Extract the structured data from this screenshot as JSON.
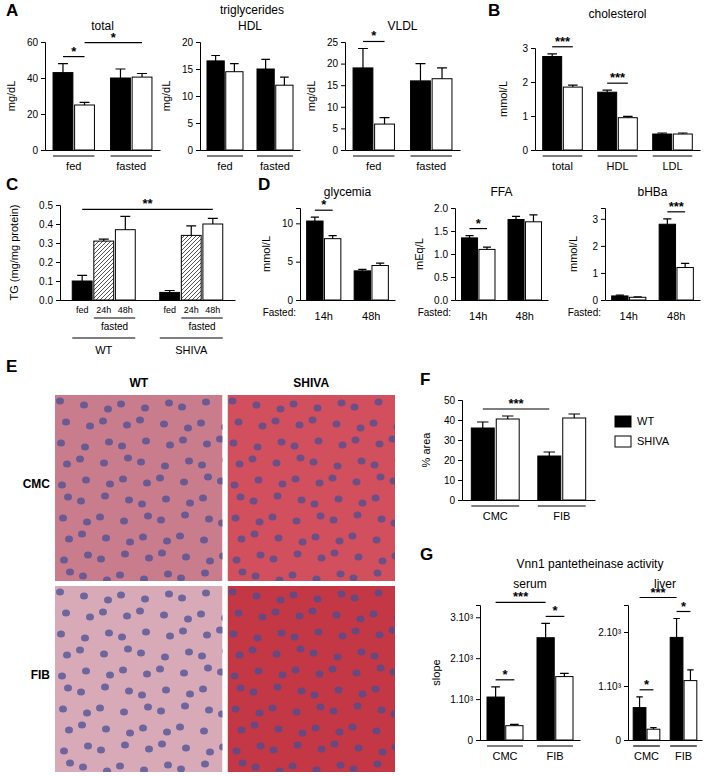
{
  "chart_data": [
    {
      "panel": "A",
      "type": "bar",
      "title": "total",
      "ylabel": "mg/dL",
      "categories": [
        "fed",
        "fasted"
      ],
      "series": [
        {
          "color": "#000000",
          "values": [
            43,
            40
          ],
          "errors": [
            5,
            5
          ]
        },
        {
          "color": "#ffffff",
          "values": [
            25,
            40.5
          ],
          "errors": [
            1.5,
            2
          ]
        }
      ],
      "ylim": [
        0,
        60
      ],
      "yticks": [
        0,
        20,
        40,
        60
      ],
      "annotations": [
        {
          "text": "*",
          "from": [
            0,
            0
          ],
          "to": [
            0,
            1
          ]
        },
        {
          "text": "*",
          "from": [
            0,
            1
          ],
          "to": [
            1,
            1
          ]
        }
      ]
    },
    {
      "type": "bar",
      "subtitle": "triglycerides",
      "title": "HDL",
      "ylabel": "mg/dL",
      "categories": [
        "fed",
        "fasted"
      ],
      "series": [
        {
          "color": "#000000",
          "values": [
            16.5,
            15
          ],
          "errors": [
            1,
            1.8
          ]
        },
        {
          "color": "#ffffff",
          "values": [
            14.5,
            12
          ],
          "errors": [
            1.5,
            1.5
          ]
        }
      ],
      "ylim": [
        0,
        20
      ],
      "yticks": [
        0,
        5,
        10,
        15,
        20
      ]
    },
    {
      "type": "bar",
      "title": "VLDL",
      "ylabel": "mg/dL",
      "categories": [
        "fed",
        "fasted"
      ],
      "series": [
        {
          "color": "#000000",
          "values": [
            19,
            16
          ],
          "errors": [
            4.5,
            4
          ]
        },
        {
          "color": "#ffffff",
          "values": [
            6,
            16.5
          ],
          "errors": [
            1.5,
            2.5
          ]
        }
      ],
      "ylim": [
        0,
        25
      ],
      "yticks": [
        0,
        5,
        10,
        15,
        20,
        25
      ],
      "annotations": [
        {
          "text": "*",
          "from": [
            0,
            0
          ],
          "to": [
            0,
            1
          ]
        }
      ]
    },
    {
      "panel": "B",
      "type": "bar",
      "title": "cholesterol",
      "ylabel": "mmol/L",
      "categories": [
        "total",
        "HDL",
        "LDL"
      ],
      "series": [
        {
          "color": "#000000",
          "values": [
            2.75,
            1.7,
            0.47
          ],
          "errors": [
            0.08,
            0.06,
            0.03
          ]
        },
        {
          "color": "#ffffff",
          "values": [
            1.85,
            0.95,
            0.47
          ],
          "errors": [
            0.06,
            0.04,
            0.03
          ]
        }
      ],
      "ylim": [
        0,
        3
      ],
      "yticks": [
        0,
        1,
        2,
        3
      ],
      "annotations": [
        {
          "text": "***",
          "from": [
            0,
            0
          ],
          "to": [
            0,
            1
          ]
        },
        {
          "text": "***",
          "from": [
            1,
            0
          ],
          "to": [
            1,
            1
          ]
        }
      ]
    },
    {
      "panel": "C",
      "type": "bar",
      "ylabel": "TG (mg/mg protein)",
      "categories": [
        "WT",
        "SHIVA"
      ],
      "sublabel": {
        "text": "fasted",
        "series": [
          1,
          2
        ]
      },
      "series": [
        {
          "name": "fed",
          "color": "#000000",
          "values": [
            0.1,
            0.04
          ],
          "errors": [
            0.03,
            0.01
          ]
        },
        {
          "name": "24h",
          "color": "#ffffff",
          "marker": "hatch",
          "values": [
            0.31,
            0.34
          ],
          "errors": [
            0.01,
            0.05
          ]
        },
        {
          "name": "48h",
          "color": "#ffffff",
          "values": [
            0.37,
            0.4
          ],
          "errors": [
            0.07,
            0.03
          ]
        }
      ],
      "ylim": [
        0,
        0.5
      ],
      "yticks": [
        {
          "value": 0,
          "label": "0.0"
        },
        {
          "value": 0.1,
          "label": "0.1"
        },
        {
          "value": 0.2,
          "label": "0.2"
        },
        {
          "value": 0.3,
          "label": "0.3"
        },
        {
          "value": 0.4,
          "label": "0.4"
        },
        {
          "value": 0.5,
          "label": "0.5"
        }
      ],
      "annotations": [
        {
          "text": "**",
          "from": [
            0,
            0
          ],
          "to": [
            1,
            2
          ]
        }
      ]
    },
    {
      "panel": "D",
      "type": "bar",
      "title": "glycemia",
      "ylabel": "mmol/L",
      "xlabel": "Fasted:",
      "categories": [
        "14h",
        "48h"
      ],
      "series": [
        {
          "color": "#000000",
          "values": [
            10.3,
            3.8
          ],
          "errors": [
            0.5,
            0.2
          ]
        },
        {
          "color": "#ffffff",
          "values": [
            8,
            4.5
          ],
          "errors": [
            0.4,
            0.3
          ]
        }
      ],
      "ylim": [
        0,
        12
      ],
      "yticks": [
        0,
        5,
        10
      ],
      "annotations": [
        {
          "text": "*",
          "from": [
            0,
            0
          ],
          "to": [
            0,
            1
          ]
        }
      ]
    },
    {
      "type": "bar",
      "title": "FFA",
      "ylabel": "mEq/L",
      "xlabel": "Fasted:",
      "categories": [
        "14h",
        "48h"
      ],
      "series": [
        {
          "color": "#000000",
          "values": [
            1.35,
            1.75
          ],
          "errors": [
            0.05,
            0.07
          ]
        },
        {
          "color": "#ffffff",
          "values": [
            1.1,
            1.7
          ],
          "errors": [
            0.05,
            0.15
          ]
        }
      ],
      "ylim": [
        0,
        2
      ],
      "yticks": [
        {
          "value": 0,
          "label": "0.0"
        },
        {
          "value": 0.5,
          "label": "0.5"
        },
        {
          "value": 1,
          "label": "1.0"
        },
        {
          "value": 1.5,
          "label": "1.5"
        },
        {
          "value": 2,
          "label": "2.0"
        }
      ],
      "annotations": [
        {
          "text": "*",
          "from": [
            0,
            0
          ],
          "to": [
            0,
            1
          ]
        }
      ]
    },
    {
      "type": "bar",
      "title": "bHBa",
      "ylabel": "mmol/L",
      "xlabel": "Fasted:",
      "categories": [
        "14h",
        "48h"
      ],
      "series": [
        {
          "color": "#000000",
          "values": [
            0.15,
            2.8
          ],
          "errors": [
            0.03,
            0.2
          ]
        },
        {
          "color": "#ffffff",
          "values": [
            0.1,
            1.2
          ],
          "errors": [
            0.02,
            0.15
          ]
        }
      ],
      "ylim": [
        0,
        3.4
      ],
      "yticks": [
        0,
        1,
        2,
        3
      ],
      "annotations": [
        {
          "text": "***",
          "from": [
            1,
            0
          ],
          "to": [
            1,
            1
          ]
        }
      ]
    },
    {
      "panel": "E",
      "type": "image",
      "columns": [
        "WT",
        "SHIVA"
      ],
      "rows": [
        "CMC",
        "FIB"
      ],
      "colors": [
        [
          "#c97c8c",
          "#d2505e"
        ],
        [
          "#d8aab8",
          "#c43745"
        ]
      ]
    },
    {
      "panel": "F",
      "type": "bar",
      "ylabel": "% area",
      "categories": [
        "CMC",
        "FIB"
      ],
      "legend": "right",
      "series": [
        {
          "name": "WT",
          "color": "#000000",
          "values": [
            36,
            22
          ],
          "errors": [
            3,
            2
          ]
        },
        {
          "name": "SHIVA",
          "color": "#ffffff",
          "values": [
            40.5,
            41
          ],
          "errors": [
            1.5,
            2
          ]
        }
      ],
      "ylim": [
        0,
        50
      ],
      "yticks": [
        0,
        10,
        20,
        30,
        40,
        50
      ],
      "annotations": [
        {
          "text": "***",
          "from": [
            0,
            0
          ],
          "to": [
            1,
            0
          ]
        }
      ]
    },
    {
      "panel": "G",
      "type": "bar",
      "subtitle": "Vnn1 pantetheinase activity",
      "title": "serum",
      "ylabel": "slope",
      "categories": [
        "CMC",
        "FIB"
      ],
      "series": [
        {
          "color": "#000000",
          "values": [
            1050,
            2500
          ],
          "errors": [
            250,
            350
          ]
        },
        {
          "color": "#ffffff",
          "values": [
            350,
            1550
          ],
          "errors": [
            30,
            80
          ]
        }
      ],
      "ylim": [
        0,
        3300
      ],
      "yticks": [
        0,
        {
          "value": 1000,
          "label": "1.10³"
        },
        {
          "value": 2000,
          "label": "2.10³"
        },
        {
          "value": 3000,
          "label": "3.10³"
        }
      ],
      "annotations": [
        {
          "text": "*",
          "from": [
            0,
            0
          ],
          "to": [
            0,
            1
          ]
        },
        {
          "text": "*",
          "from": [
            1,
            0
          ],
          "to": [
            1,
            1
          ]
        },
        {
          "text": "***",
          "from": [
            0,
            0
          ],
          "to": [
            1,
            0
          ]
        }
      ]
    },
    {
      "type": "bar",
      "title": "liver",
      "categories": [
        "CMC",
        "FIB"
      ],
      "series": [
        {
          "color": "#000000",
          "values": [
            600,
            1900
          ],
          "errors": [
            200,
            350
          ]
        },
        {
          "color": "#ffffff",
          "values": [
            200,
            1100
          ],
          "errors": [
            30,
            200
          ]
        }
      ],
      "ylim": [
        0,
        2500
      ],
      "yticks": [
        0,
        {
          "value": 1000,
          "label": "1.10³"
        },
        {
          "value": 2000,
          "label": "2.10³"
        }
      ],
      "annotations": [
        {
          "text": "*",
          "from": [
            0,
            0
          ],
          "to": [
            0,
            1
          ]
        },
        {
          "text": "*",
          "from": [
            1,
            0
          ],
          "to": [
            1,
            1
          ]
        },
        {
          "text": "***",
          "from": [
            0,
            0
          ],
          "to": [
            1,
            0
          ]
        }
      ]
    }
  ]
}
